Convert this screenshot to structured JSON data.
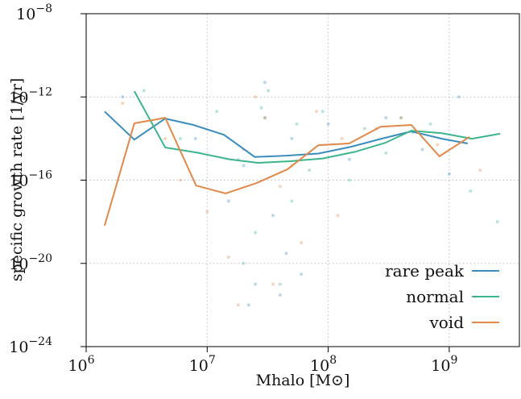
{
  "chart_data": {
    "type": "line",
    "xlabel": "Mhalo [M⊙]",
    "ylabel": "specific growth rate [1/yr]",
    "xscale": "log",
    "yscale": "log",
    "grid": true,
    "legend": "lower right",
    "xlim": [
      1000000.0,
      3800000000.0
    ],
    "ylim": [
      1e-24,
      1e-08
    ],
    "xticks": [
      {
        "value": 1000000.0,
        "label": "106"
      },
      {
        "value": 10000000.0,
        "label": "107"
      },
      {
        "value": 100000000.0,
        "label": "108"
      },
      {
        "value": 1000000000.0,
        "label": "109"
      }
    ],
    "yticks": [
      {
        "value": 1e-24,
        "label": "10−24"
      },
      {
        "value": 1e-20,
        "label": "10−20"
      },
      {
        "value": 1e-16,
        "label": "10−16"
      },
      {
        "value": 1e-12,
        "label": "10−12"
      },
      {
        "value": 1e-08,
        "label": "10−8"
      }
    ],
    "series": [
      {
        "name": "rare peak",
        "color": "#3b8dbd",
        "x": [
          1420000.0,
          2500000.0,
          4500000.0,
          7700000.0,
          13800000.0,
          24700000.0,
          45000000.0,
          83000000.0,
          154000000.0,
          275000000.0,
          486000000.0,
          870000000.0,
          1420000000.0
        ],
        "values": [
          2e-13,
          8.9e-15,
          9.1e-14,
          4.5e-14,
          1.5e-14,
          1.3e-15,
          1.5e-15,
          1.9e-15,
          4e-15,
          9.8e-15,
          2.2e-14,
          9.8e-15,
          5.8e-15
        ],
        "points_x": [
          30000000.0,
          25000000.0,
          40000000.0,
          50000000.0,
          20000000.0,
          35000000.0,
          60000000.0,
          100000000.0,
          150000000.0,
          300000000.0,
          500000000.0,
          1200000000.0,
          8000000.0,
          15000000.0,
          30000000.0,
          45000000.0,
          22000000.0,
          600000000.0,
          2000000.0,
          1000000000.0
        ],
        "points_y": [
          1e-13,
          1e-21,
          3e-22,
          1e-14,
          5e-16,
          2e-18,
          3e-21,
          5e-14,
          1e-15,
          1e-13,
          2e-14,
          1e-12,
          1e-14,
          1e-17,
          5e-12,
          3e-20,
          1e-22,
          3e-15,
          1e-12,
          2e-16
        ]
      },
      {
        "name": "normal",
        "color": "#3db58b",
        "x": [
          2500000.0,
          4500000.0,
          8300000.0,
          15400000.0,
          26300000.0,
          48600000.0,
          90000000.0,
          166000000.0,
          297000000.0,
          486000000.0,
          870000000.0,
          1540000000.0,
          2630000000.0
        ],
        "values": [
          1.9e-12,
          3.7e-15,
          2.1e-15,
          1e-15,
          6.8e-16,
          8.1e-16,
          1.1e-15,
          2.3e-15,
          6.3e-15,
          2.4e-14,
          1.8e-14,
          9.8e-15,
          1.7e-14
        ],
        "points_x": [
          28000000.0,
          32000000.0,
          18000000.0,
          55000000.0,
          90000000.0,
          200000000.0,
          400000000.0,
          1500000000.0,
          2500000000.0,
          12000000.0,
          40000000.0,
          6000000.0,
          3000000.0,
          70000000.0,
          25000000.0,
          150000000.0,
          300000000.0,
          700000000.0,
          20000000.0,
          50000000.0
        ],
        "points_y": [
          3e-13,
          2e-12,
          1e-15,
          5e-14,
          2e-13,
          3e-14,
          1e-13,
          3e-17,
          1e-18,
          2e-13,
          1e-21,
          1e-14,
          2e-12,
          3e-16,
          3e-19,
          1e-16,
          2e-15,
          5e-14,
          1e-20,
          1e-17
        ]
      },
      {
        "name": "void",
        "color": "#e0894a",
        "x": [
          1420000.0,
          2500000.0,
          4500000.0,
          8100000.0,
          14200000.0,
          25500000.0,
          46000000.0,
          83000000.0,
          149000000.0,
          271000000.0,
          486000000.0,
          830000000.0,
          1470000000.0
        ],
        "values": [
          6.5e-19,
          5.4e-14,
          1e-13,
          5.5e-17,
          2.3e-17,
          7.2e-17,
          3.3e-16,
          4.8e-15,
          5.8e-15,
          3.7e-14,
          4.5e-14,
          1.4e-15,
          1.2e-14
        ],
        "points_x": [
          30000000.0,
          20000000.0,
          4500000.0,
          15000000.0,
          50000000.0,
          80000000.0,
          130000000.0,
          250000000.0,
          400000000.0,
          800000000.0,
          1800000000.0,
          10000000.0,
          35000000.0,
          60000000.0,
          25000000.0,
          18000000.0,
          40000000.0,
          120000000.0,
          2000000.0,
          6000000.0
        ],
        "points_y": [
          1e-13,
          3e-15,
          1e-14,
          2e-20,
          5e-16,
          2e-13,
          1e-14,
          3e-14,
          1e-13,
          5e-15,
          3e-16,
          3e-18,
          1e-21,
          1e-19,
          1e-12,
          1e-22,
          5e-17,
          2e-18,
          5e-13,
          1e-16
        ]
      }
    ]
  }
}
